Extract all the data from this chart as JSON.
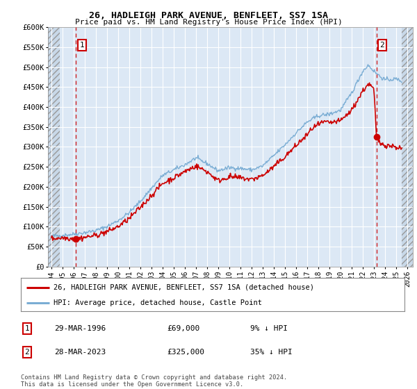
{
  "title1": "26, HADLEIGH PARK AVENUE, BENFLEET, SS7 1SA",
  "title2": "Price paid vs. HM Land Registry's House Price Index (HPI)",
  "ylim": [
    0,
    600000
  ],
  "yticks": [
    0,
    50000,
    100000,
    150000,
    200000,
    250000,
    300000,
    350000,
    400000,
    450000,
    500000,
    550000,
    600000
  ],
  "ytick_labels": [
    "£0",
    "£50K",
    "£100K",
    "£150K",
    "£200K",
    "£250K",
    "£300K",
    "£350K",
    "£400K",
    "£450K",
    "£500K",
    "£550K",
    "£600K"
  ],
  "xlim_start": 1993.7,
  "xlim_end": 2026.5,
  "hatch_left_end": 1994.75,
  "hatch_right_start": 2025.5,
  "xtick_years": [
    1994,
    1995,
    1996,
    1997,
    1998,
    1999,
    2000,
    2001,
    2002,
    2003,
    2004,
    2005,
    2006,
    2007,
    2008,
    2009,
    2010,
    2011,
    2012,
    2013,
    2014,
    2015,
    2016,
    2017,
    2018,
    2019,
    2020,
    2021,
    2022,
    2023,
    2024,
    2025,
    2026
  ],
  "sale1_x": 1996.23,
  "sale1_y": 69000,
  "sale1_label": "1",
  "sale2_x": 2023.23,
  "sale2_y": 325000,
  "sale2_label": "2",
  "line_red_color": "#cc0000",
  "line_blue_color": "#7aadd4",
  "bg_plot_color": "#dce8f5",
  "grid_color": "#ffffff",
  "legend_line1": "26, HADLEIGH PARK AVENUE, BENFLEET, SS7 1SA (detached house)",
  "legend_line2": "HPI: Average price, detached house, Castle Point",
  "table_row1_num": "1",
  "table_row1_date": "29-MAR-1996",
  "table_row1_price": "£69,000",
  "table_row1_hpi": "9% ↓ HPI",
  "table_row2_num": "2",
  "table_row2_date": "28-MAR-2023",
  "table_row2_price": "£325,000",
  "table_row2_hpi": "35% ↓ HPI",
  "footer": "Contains HM Land Registry data © Crown copyright and database right 2024.\nThis data is licensed under the Open Government Licence v3.0."
}
